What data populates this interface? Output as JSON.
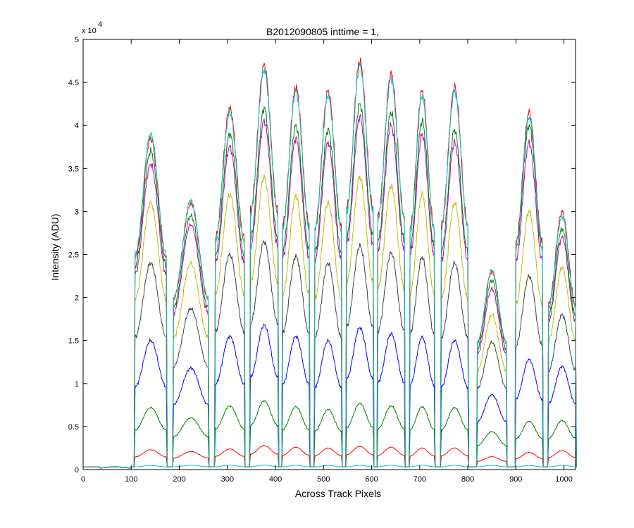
{
  "chart_data": {
    "type": "line",
    "title": "B2012090805 inttime = 1,",
    "xlabel": "Across Track Pixels",
    "ylabel": "Intensity (ADU)",
    "xlim": [
      0,
      1024
    ],
    "ylim": [
      0,
      50000
    ],
    "x_ticks": [
      "0",
      "100",
      "200",
      "300",
      "400",
      "500",
      "600",
      "700",
      "800",
      "900",
      "1000"
    ],
    "y_ticks": [
      "0",
      "0.5",
      "1",
      "1.5",
      "2",
      "2.5",
      "3",
      "3.5",
      "4",
      "4.5",
      "5"
    ],
    "y_exponent_label": "x 10",
    "y_exponent_power": "4",
    "grid": false,
    "legend": "none",
    "series": [
      {
        "color": "#00bfbf",
        "values": [
          350,
          480,
          500,
          510,
          520,
          500,
          490,
          500,
          510,
          520,
          500,
          490,
          480,
          500
        ]
      },
      {
        "color": "#ff0000",
        "values": [
          300,
          2300,
          2100,
          2400,
          2800,
          2600,
          2500,
          2700,
          2600,
          2500,
          2500,
          1500,
          2000,
          2200
        ]
      },
      {
        "color": "#008000",
        "values": [
          300,
          7200,
          6000,
          7400,
          8000,
          7300,
          7000,
          7700,
          7400,
          7300,
          7200,
          4400,
          5600,
          5700
        ]
      },
      {
        "color": "#0000ff",
        "values": [
          300,
          15000,
          11800,
          15500,
          16800,
          15500,
          15000,
          16500,
          15800,
          15400,
          15000,
          8700,
          12800,
          12000
        ]
      },
      {
        "color": "#404040",
        "values": [
          300,
          24000,
          18700,
          25000,
          26500,
          24800,
          24000,
          26000,
          25200,
          24700,
          24000,
          14800,
          22500,
          18000
        ]
      },
      {
        "color": "#bfbf00",
        "values": [
          300,
          31000,
          24000,
          32000,
          34000,
          31800,
          31000,
          34000,
          33000,
          32000,
          31000,
          18000,
          30000,
          23500
        ]
      },
      {
        "color": "#bf00bf",
        "values": [
          300,
          35500,
          28500,
          37500,
          40500,
          38500,
          38000,
          41000,
          40000,
          39000,
          38000,
          21000,
          38000,
          27000
        ]
      },
      {
        "color": "#008000",
        "values": [
          300,
          37000,
          29500,
          39000,
          42000,
          40000,
          39500,
          42500,
          41500,
          40500,
          39500,
          22000,
          40000,
          28000
        ]
      },
      {
        "color": "#ff0000",
        "values": [
          300,
          38500,
          31000,
          42000,
          47000,
          44500,
          44000,
          47500,
          46000,
          44000,
          44500,
          23000,
          41500,
          30000
        ]
      },
      {
        "color": "#00bfbf",
        "values": [
          300,
          39000,
          31200,
          41500,
          46500,
          44000,
          43500,
          47000,
          45500,
          43500,
          44000,
          23200,
          41000,
          29500
        ]
      }
    ]
  }
}
